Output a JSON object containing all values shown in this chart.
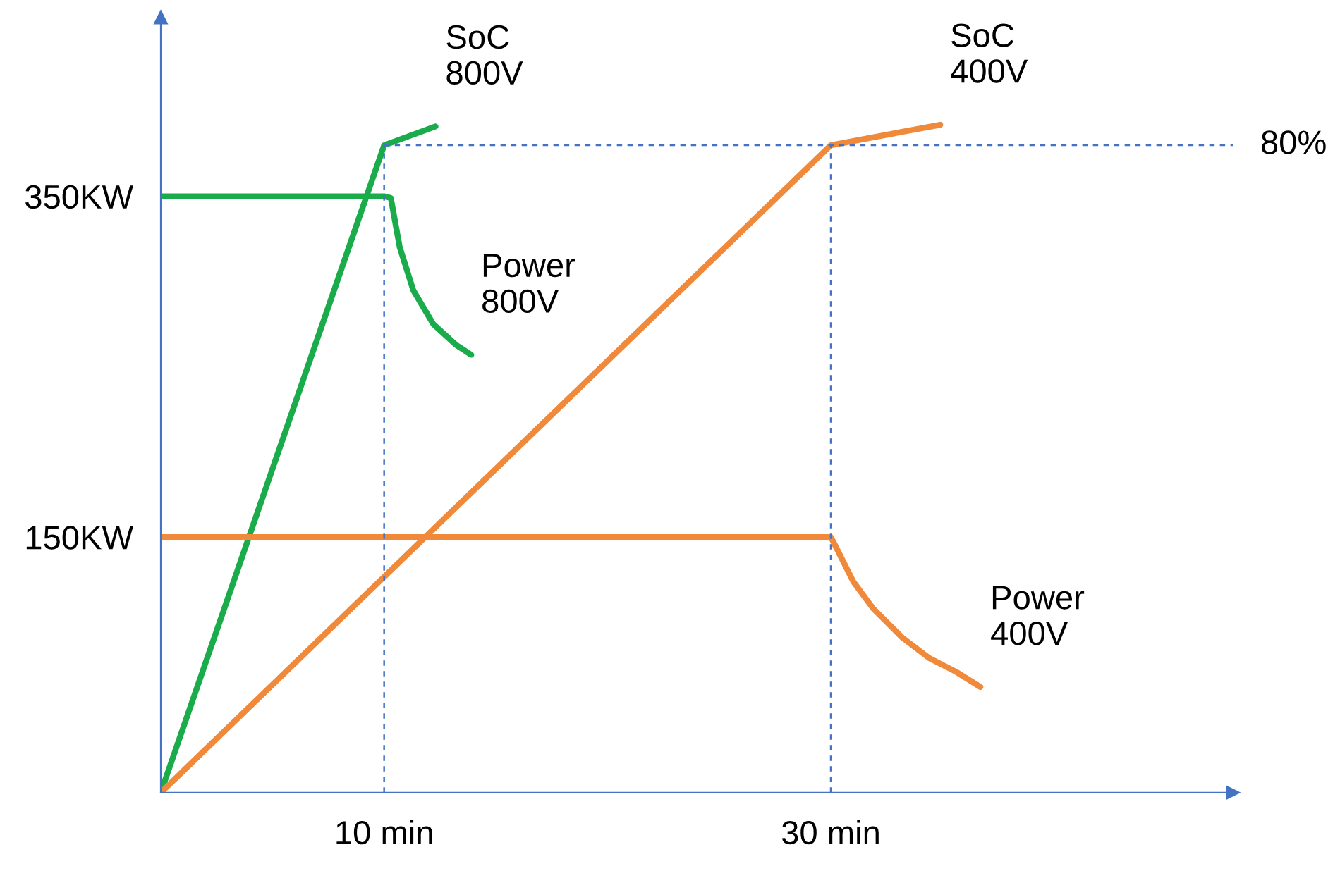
{
  "chart_data": {
    "type": "line",
    "series": [
      {
        "name": "SoC\n800V",
        "color": "#1aab4b",
        "x": [
          0,
          10,
          12.3
        ],
        "values": [
          0,
          380,
          391
        ]
      },
      {
        "name": "Power\n800V",
        "color": "#1aab4b",
        "x": [
          0,
          10,
          10.3,
          10.7,
          11.3,
          12.2,
          13.2,
          13.9
        ],
        "values": [
          350,
          350,
          349,
          320,
          295,
          275,
          263,
          257
        ]
      },
      {
        "name": "SoC\n400V",
        "color": "#f08a3a",
        "x": [
          0,
          30,
          34.9
        ],
        "values": [
          0,
          380,
          392
        ]
      },
      {
        "name": "Power\n400V",
        "color": "#f08a3a",
        "x": [
          0,
          30,
          30.2,
          31.0,
          31.9,
          33.2,
          34.4,
          35.6,
          36.7
        ],
        "values": [
          150,
          150,
          145,
          124,
          108,
          91,
          79,
          71,
          62
        ]
      }
    ],
    "xlim": [
      0,
      48
    ],
    "xticks": [
      {
        "value": 10,
        "label": "10 min"
      },
      {
        "value": 30,
        "label": "30 min"
      }
    ],
    "ylim": [
      0,
      455
    ],
    "yticks": [
      {
        "value": 150,
        "label": "150KW"
      },
      {
        "value": 350,
        "label": "350KW"
      }
    ],
    "annotations": [
      {
        "text": "80%",
        "x": 48,
        "y": 380
      }
    ],
    "ref_lines": [
      {
        "axis": "y",
        "value": 380,
        "label": null,
        "color": "#4472c4",
        "line_style": "dashed"
      },
      {
        "axis": "x",
        "value": 10,
        "label": null,
        "color": "#4472c4",
        "line_style": "dashed"
      },
      {
        "axis": "x",
        "value": 30,
        "label": null,
        "color": "#4472c4",
        "line_style": "dashed"
      }
    ],
    "grid": false,
    "marker": "none",
    "line_style": "solid"
  }
}
